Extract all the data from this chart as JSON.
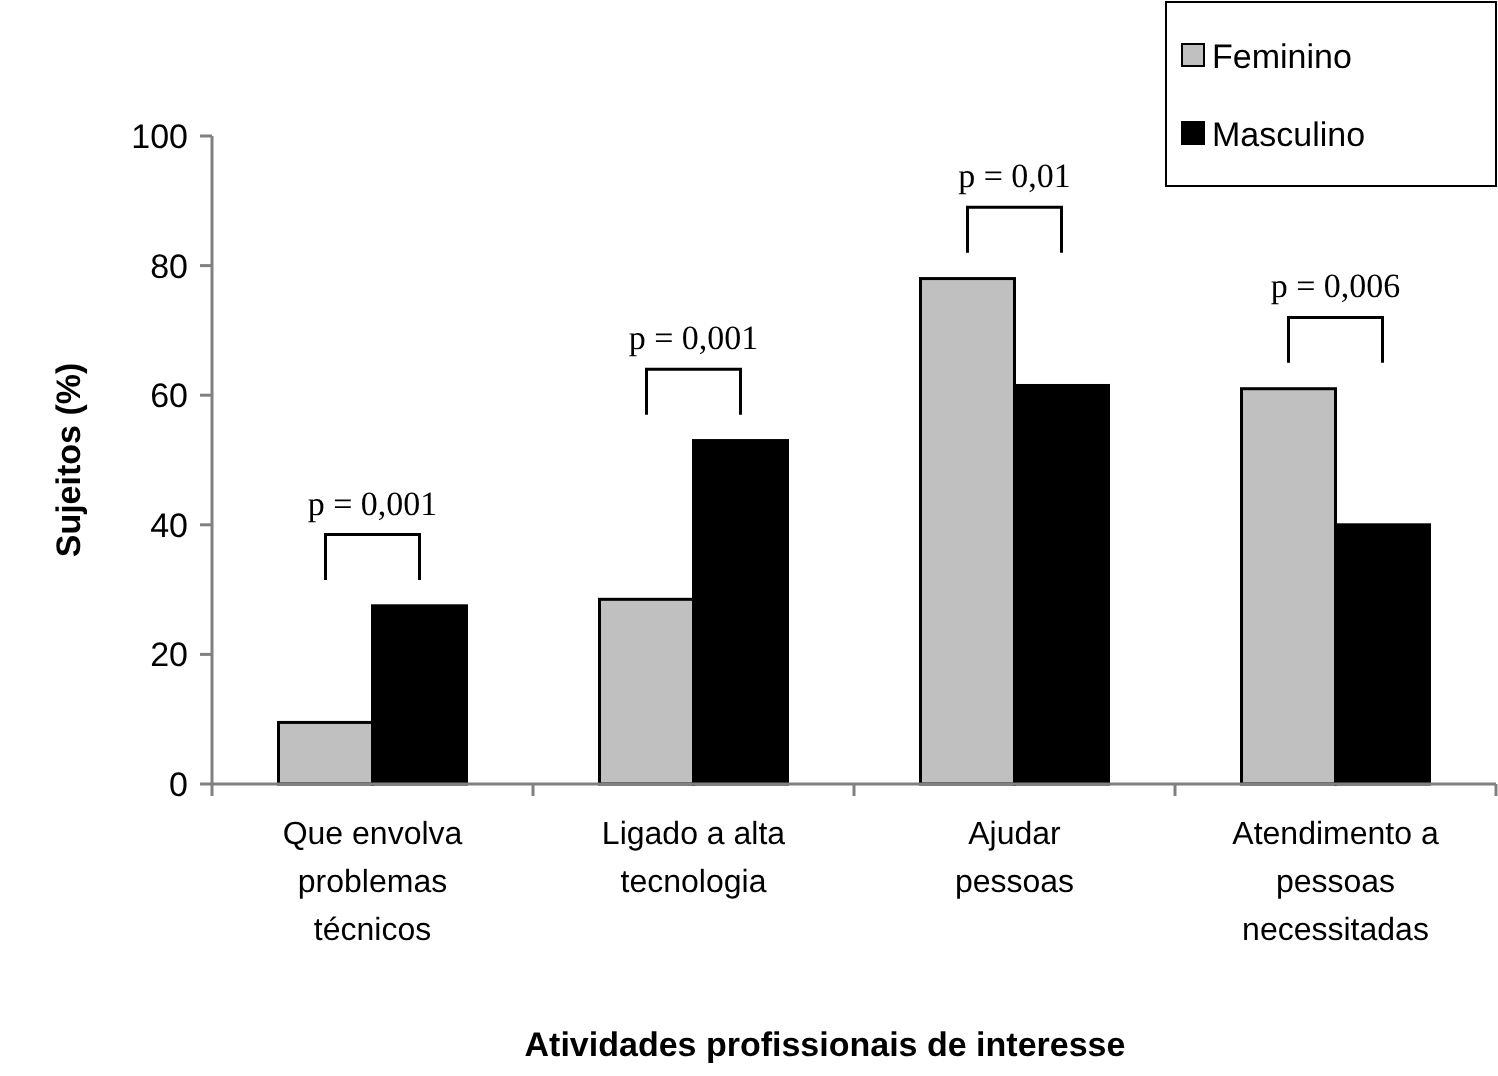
{
  "chart_data": {
    "type": "bar",
    "xlabel": "Atividades profissionais de interesse",
    "ylabel": "Sujeitos (%)",
    "categories": [
      "Que envolva\nproblemas\ntécnicos",
      "Ligado a alta\ntecnologia",
      "Ajudar\npessoas",
      "Atendimento a\npessoas\nnecessitadas"
    ],
    "series": [
      {
        "name": "Feminino",
        "color": "#c0c0c0",
        "values": [
          9.5,
          28.5,
          78,
          61
        ]
      },
      {
        "name": "Masculino",
        "color": "#000000",
        "values": [
          27.5,
          53,
          61.5,
          40
        ]
      }
    ],
    "ylim": [
      0,
      100
    ],
    "yticks": [
      0,
      20,
      40,
      60,
      80,
      100
    ],
    "grid": false,
    "legend": "top right",
    "annotations": [
      "p = 0,001",
      "p = 0,001",
      "p = 0,01",
      "p = 0,006"
    ]
  }
}
